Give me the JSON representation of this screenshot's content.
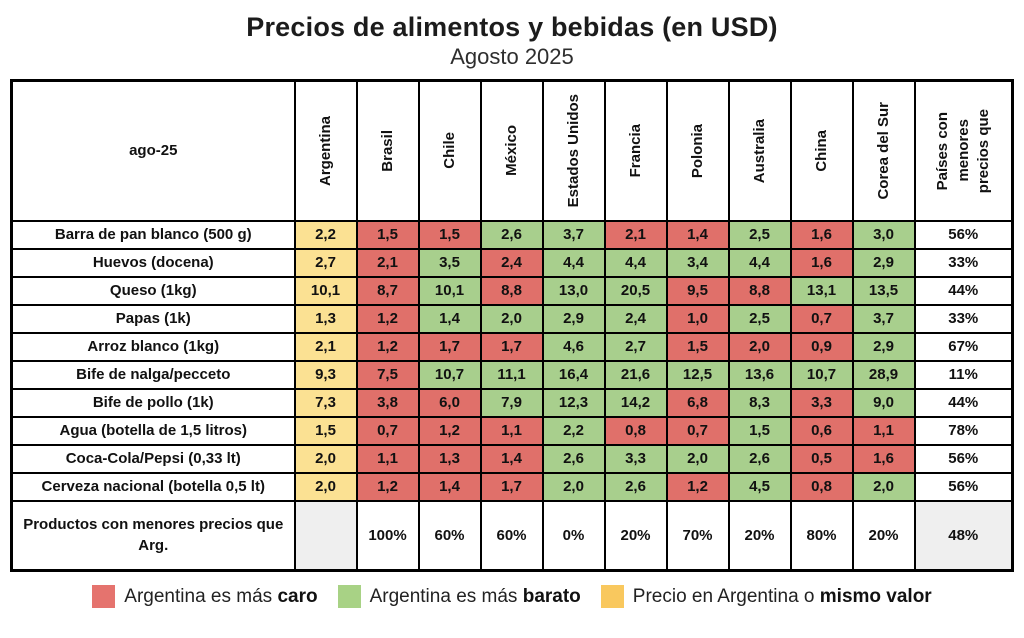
{
  "chart_data": {
    "type": "table",
    "title": "Precios de alimentos y bebidas (en USD)",
    "subtitle": "Agosto 2025",
    "corner_label": "ago-25",
    "columns": [
      "Argentina",
      "Brasil",
      "Chile",
      "México",
      "Estados Unidos",
      "Francia",
      "Polonia",
      "Australia",
      "China",
      "Corea del Sur"
    ],
    "last_column_header_lines": [
      "Países con",
      "menores",
      "precios que"
    ],
    "rows": [
      {
        "label": "Barra de pan blanco (500 g)",
        "values": [
          "2,2",
          "1,5",
          "1,5",
          "2,6",
          "3,7",
          "2,1",
          "1,4",
          "2,5",
          "1,6",
          "3,0"
        ],
        "colors": [
          "y",
          "r",
          "r",
          "g",
          "g",
          "r",
          "r",
          "g",
          "r",
          "g"
        ],
        "pct": "56%"
      },
      {
        "label": "Huevos (docena)",
        "values": [
          "2,7",
          "2,1",
          "3,5",
          "2,4",
          "4,4",
          "4,4",
          "3,4",
          "4,4",
          "1,6",
          "2,9"
        ],
        "colors": [
          "y",
          "r",
          "g",
          "r",
          "g",
          "g",
          "g",
          "g",
          "r",
          "g"
        ],
        "pct": "33%"
      },
      {
        "label": "Queso (1kg)",
        "values": [
          "10,1",
          "8,7",
          "10,1",
          "8,8",
          "13,0",
          "20,5",
          "9,5",
          "8,8",
          "13,1",
          "13,5"
        ],
        "colors": [
          "y",
          "r",
          "g",
          "r",
          "g",
          "g",
          "r",
          "r",
          "g",
          "g"
        ],
        "pct": "44%"
      },
      {
        "label": "Papas (1k)",
        "values": [
          "1,3",
          "1,2",
          "1,4",
          "2,0",
          "2,9",
          "2,4",
          "1,0",
          "2,5",
          "0,7",
          "3,7"
        ],
        "colors": [
          "y",
          "r",
          "g",
          "g",
          "g",
          "g",
          "r",
          "g",
          "r",
          "g"
        ],
        "pct": "33%"
      },
      {
        "label": "Arroz blanco (1kg)",
        "values": [
          "2,1",
          "1,2",
          "1,7",
          "1,7",
          "4,6",
          "2,7",
          "1,5",
          "2,0",
          "0,9",
          "2,9"
        ],
        "colors": [
          "y",
          "r",
          "r",
          "r",
          "g",
          "g",
          "r",
          "r",
          "r",
          "g"
        ],
        "pct": "67%"
      },
      {
        "label": "Bife de nalga/pecceto",
        "values": [
          "9,3",
          "7,5",
          "10,7",
          "11,1",
          "16,4",
          "21,6",
          "12,5",
          "13,6",
          "10,7",
          "28,9"
        ],
        "colors": [
          "y",
          "r",
          "g",
          "g",
          "g",
          "g",
          "g",
          "g",
          "g",
          "g"
        ],
        "pct": "11%"
      },
      {
        "label": "Bife de pollo (1k)",
        "values": [
          "7,3",
          "3,8",
          "6,0",
          "7,9",
          "12,3",
          "14,2",
          "6,8",
          "8,3",
          "3,3",
          "9,0"
        ],
        "colors": [
          "y",
          "r",
          "r",
          "g",
          "g",
          "g",
          "r",
          "g",
          "r",
          "g"
        ],
        "pct": "44%"
      },
      {
        "label": "Agua (botella de 1,5 litros)",
        "values": [
          "1,5",
          "0,7",
          "1,2",
          "1,1",
          "2,2",
          "0,8",
          "0,7",
          "1,5",
          "0,6",
          "1,1"
        ],
        "colors": [
          "y",
          "r",
          "r",
          "r",
          "g",
          "r",
          "r",
          "g",
          "r",
          "r"
        ],
        "pct": "78%"
      },
      {
        "label": "Coca-Cola/Pepsi (0,33 lt)",
        "values": [
          "2,0",
          "1,1",
          "1,3",
          "1,4",
          "2,6",
          "3,3",
          "2,0",
          "2,6",
          "0,5",
          "1,6"
        ],
        "colors": [
          "y",
          "r",
          "r",
          "r",
          "g",
          "g",
          "g",
          "g",
          "r",
          "r"
        ],
        "pct": "56%"
      },
      {
        "label": "Cerveza nacional (botella 0,5 lt)",
        "values": [
          "2,0",
          "1,2",
          "1,4",
          "1,7",
          "2,0",
          "2,6",
          "1,2",
          "4,5",
          "0,8",
          "2,0"
        ],
        "colors": [
          "y",
          "r",
          "r",
          "r",
          "g",
          "g",
          "r",
          "g",
          "r",
          "g"
        ],
        "pct": "56%"
      }
    ],
    "footer_row": {
      "label": "Productos con menores precios que Arg.",
      "values": [
        "",
        "100%",
        "60%",
        "60%",
        "0%",
        "20%",
        "70%",
        "20%",
        "80%",
        "20%"
      ],
      "total": "48%"
    }
  },
  "legend": {
    "items": [
      {
        "text": "Argentina es más ",
        "bold": "caro",
        "swatch": "#E5736E"
      },
      {
        "text": "Argentina es más ",
        "bold": "barato",
        "swatch": "#A8D285"
      },
      {
        "text": "Precio en Argentina o ",
        "bold": "mismo valor",
        "swatch": "#F9C85E"
      }
    ]
  },
  "colors": {
    "cell_caro_red": "#E0706A",
    "cell_barato_green": "#A8CF8D",
    "cell_igual_yellow": "#FBE193",
    "header_argentina_yellow": "#FBDB86",
    "neutral_grey": "#EFEFEF",
    "border": "#000000",
    "legend_red": "#E5736E",
    "legend_green": "#A8D285",
    "legend_yellow": "#F9C85E"
  }
}
